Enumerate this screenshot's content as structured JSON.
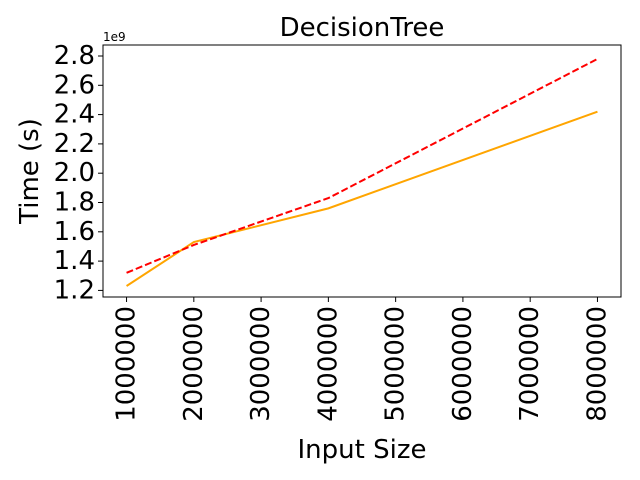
{
  "chart_data": {
    "type": "line",
    "title": "DecisionTree",
    "xlabel": "Input Size",
    "ylabel": "Time (s)",
    "y_offset_label": "1e9",
    "x_ticks": [
      1000000,
      2000000,
      3000000,
      4000000,
      5000000,
      6000000,
      7000000,
      8000000
    ],
    "x_tick_labels": [
      "1000000",
      "2000000",
      "3000000",
      "4000000",
      "5000000",
      "6000000",
      "7000000",
      "8000000"
    ],
    "y_ticks": [
      1.2,
      1.4,
      1.6,
      1.8,
      2.0,
      2.2,
      2.4,
      2.6,
      2.8
    ],
    "y_tick_labels": [
      "1.2",
      "1.4",
      "1.6",
      "1.8",
      "2.0",
      "2.2",
      "2.4",
      "2.6",
      "2.8"
    ],
    "xlim": [
      650000,
      8350000
    ],
    "ylim": [
      1.155,
      2.875
    ],
    "grid": false,
    "series": [
      {
        "color": "#ffa500",
        "style": "solid",
        "x": [
          1000000,
          2000000,
          4000000,
          8000000
        ],
        "y": [
          1.23,
          1.53,
          1.76,
          2.42
        ]
      },
      {
        "color": "#ff0000",
        "style": "dashed",
        "x": [
          1000000,
          2000000,
          4000000,
          8000000
        ],
        "y": [
          1.32,
          1.51,
          1.83,
          2.78
        ]
      }
    ]
  }
}
